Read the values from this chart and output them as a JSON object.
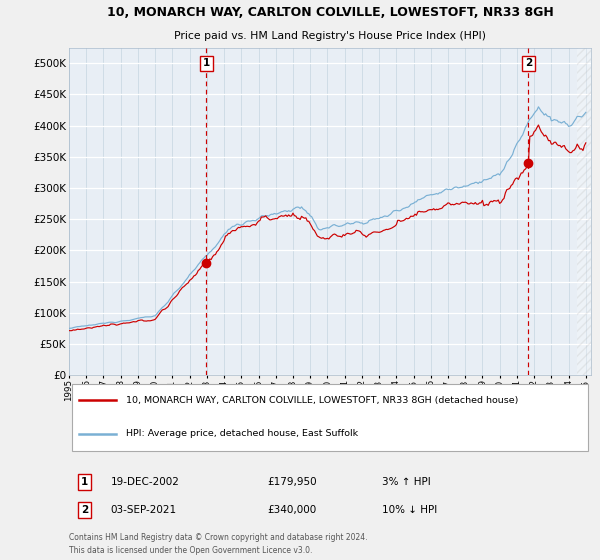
{
  "title1": "10, MONARCH WAY, CARLTON COLVILLE, LOWESTOFT, NR33 8GH",
  "title2": "Price paid vs. HM Land Registry's House Price Index (HPI)",
  "legend1": "10, MONARCH WAY, CARLTON COLVILLE, LOWESTOFT, NR33 8GH (detached house)",
  "legend2": "HPI: Average price, detached house, East Suffolk",
  "purchase1_year": 2002.97,
  "purchase1_price": 179950,
  "purchase2_year": 2021.67,
  "purchase2_price": 340000,
  "bg_color": "#f0f0f0",
  "plot_bg_color": "#e8eef5",
  "red_line_color": "#cc0000",
  "blue_line_color": "#7ab0d4",
  "vline_color": "#cc0000",
  "ylim": [
    0,
    525000
  ],
  "yticks": [
    0,
    50000,
    100000,
    150000,
    200000,
    250000,
    300000,
    350000,
    400000,
    450000,
    500000
  ],
  "ytick_labels": [
    "£0",
    "£50K",
    "£100K",
    "£150K",
    "£200K",
    "£250K",
    "£300K",
    "£350K",
    "£400K",
    "£450K",
    "£500K"
  ]
}
